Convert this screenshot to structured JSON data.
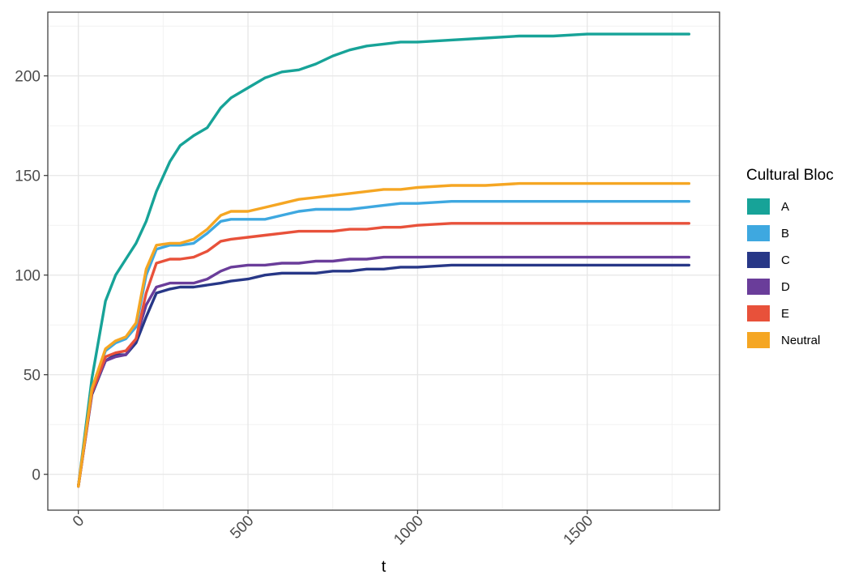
{
  "chart_data": {
    "type": "line",
    "xlabel": "t",
    "ylabel": "",
    "xlim": [
      -90,
      1890
    ],
    "ylim": [
      -18,
      232
    ],
    "xticks": [
      0,
      500,
      1000,
      1500
    ],
    "xtick_labels": [
      "0",
      "500",
      "1000",
      "1500"
    ],
    "yticks": [
      0,
      50,
      100,
      150,
      200
    ],
    "ytick_labels": [
      "0",
      "50",
      "100",
      "150",
      "200"
    ],
    "grid": true,
    "legend": {
      "title": "Cultural Bloc",
      "position": "right"
    },
    "x": [
      0,
      40,
      80,
      110,
      140,
      170,
      200,
      230,
      270,
      300,
      340,
      380,
      420,
      450,
      500,
      550,
      600,
      650,
      700,
      750,
      800,
      850,
      900,
      950,
      1000,
      1100,
      1200,
      1300,
      1400,
      1500,
      1600,
      1700,
      1800
    ],
    "series": [
      {
        "name": "A",
        "color": "#17A398",
        "values": [
          -6,
          48,
          87,
          100,
          108,
          116,
          127,
          142,
          157,
          165,
          170,
          174,
          184,
          189,
          194,
          199,
          202,
          203,
          206,
          210,
          213,
          215,
          216,
          217,
          217,
          218,
          219,
          220,
          220,
          221,
          221,
          221,
          221
        ]
      },
      {
        "name": "B",
        "color": "#3EA8E0",
        "values": [
          -6,
          43,
          62,
          66,
          68,
          74,
          100,
          113,
          115,
          115,
          116,
          121,
          127,
          128,
          128,
          128,
          130,
          132,
          133,
          133,
          133,
          134,
          135,
          136,
          136,
          137,
          137,
          137,
          137,
          137,
          137,
          137,
          137
        ]
      },
      {
        "name": "C",
        "color": "#273787",
        "values": [
          -6,
          40,
          57,
          60,
          60,
          66,
          79,
          91,
          93,
          94,
          94,
          95,
          96,
          97,
          98,
          100,
          101,
          101,
          101,
          102,
          102,
          103,
          103,
          104,
          104,
          105,
          105,
          105,
          105,
          105,
          105,
          105,
          105
        ]
      },
      {
        "name": "D",
        "color": "#6A3D9A",
        "values": [
          -6,
          41,
          57,
          59,
          60,
          68,
          85,
          94,
          96,
          96,
          96,
          98,
          102,
          104,
          105,
          105,
          106,
          106,
          107,
          107,
          108,
          108,
          109,
          109,
          109,
          109,
          109,
          109,
          109,
          109,
          109,
          109,
          109
        ]
      },
      {
        "name": "E",
        "color": "#E8513A",
        "values": [
          -6,
          41,
          59,
          61,
          62,
          68,
          91,
          106,
          108,
          108,
          109,
          112,
          117,
          118,
          119,
          120,
          121,
          122,
          122,
          122,
          123,
          123,
          124,
          124,
          125,
          126,
          126,
          126,
          126,
          126,
          126,
          126,
          126
        ]
      },
      {
        "name": "Neutral",
        "color": "#F5A623",
        "values": [
          -6,
          43,
          63,
          67,
          69,
          76,
          103,
          115,
          116,
          116,
          118,
          123,
          130,
          132,
          132,
          134,
          136,
          138,
          139,
          140,
          141,
          142,
          143,
          143,
          144,
          145,
          145,
          146,
          146,
          146,
          146,
          146,
          146
        ]
      }
    ]
  }
}
